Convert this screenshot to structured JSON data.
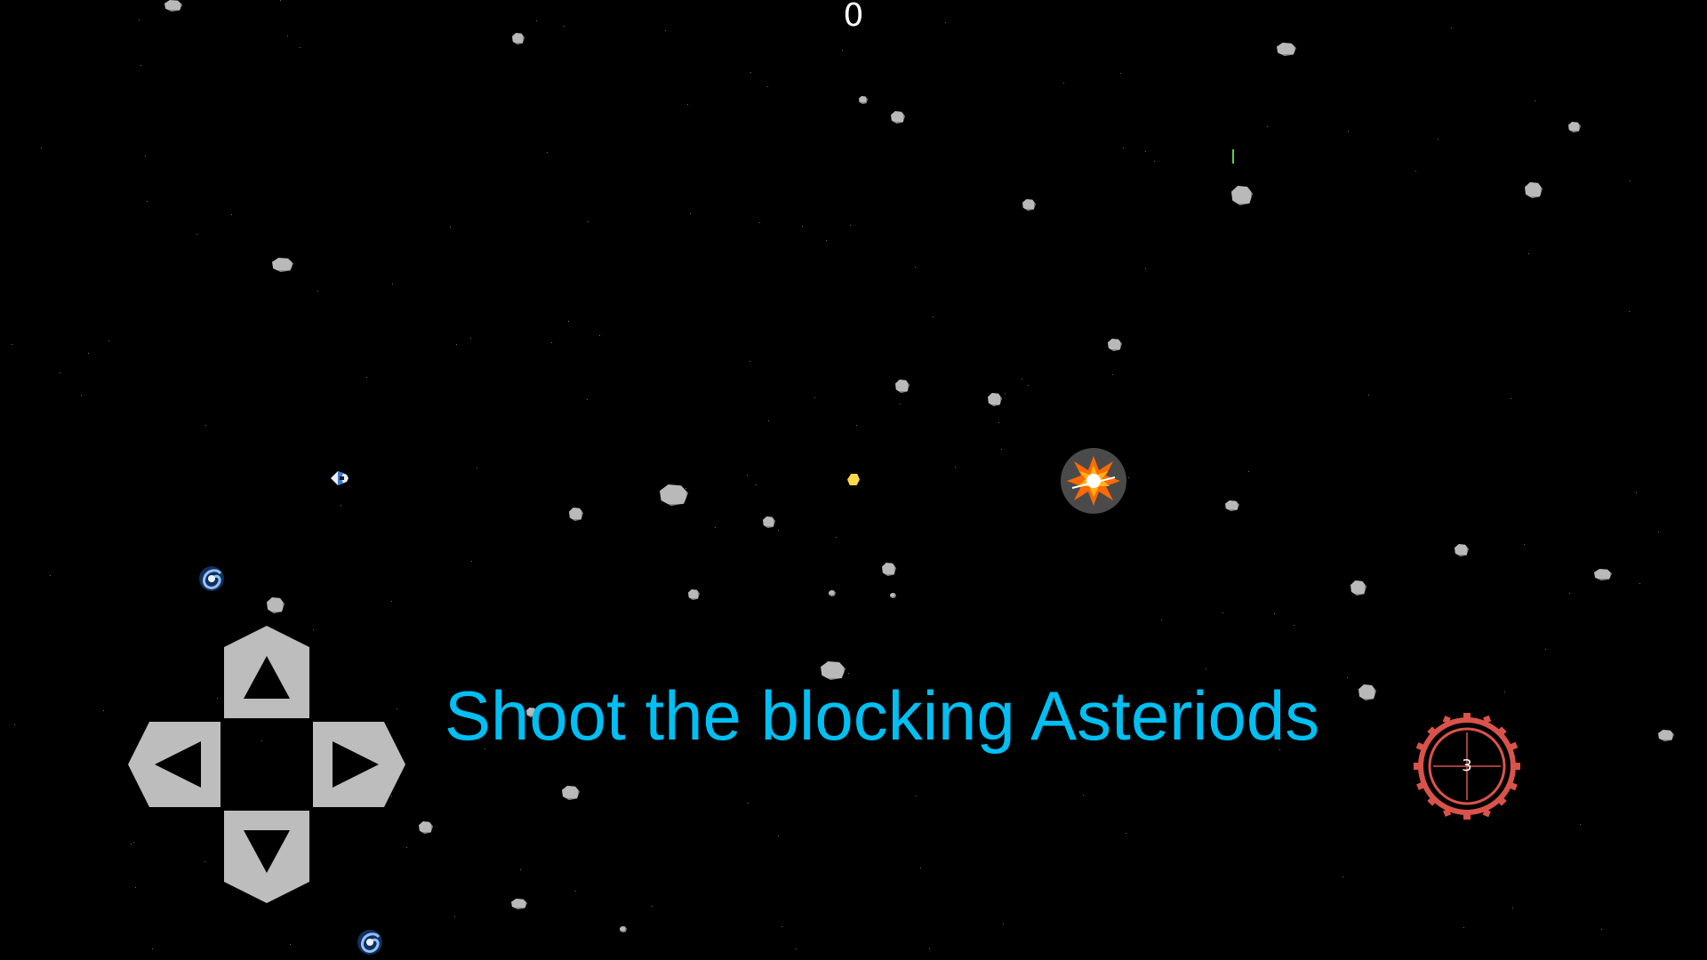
{
  "hud": {
    "score": "0"
  },
  "tutorial": {
    "hint_text": "Shoot the blocking Asteriods"
  },
  "controls": {
    "dpad": [
      "up",
      "left",
      "right",
      "down"
    ],
    "fire_button": {
      "count": "3",
      "icon": "crosshair-icon"
    }
  },
  "icons": {
    "player": "spaceship-icon",
    "asteroid": "asteroid-icon",
    "galaxy": "galaxy-icon",
    "explosion": "explosion-icon",
    "bullet": "bullet-icon"
  },
  "colors": {
    "background": "#000000",
    "hint_text": "#00bff3",
    "score_text": "#ffffff",
    "dpad": "#bdbdbd",
    "fire_ring": "#d9534a",
    "asteroid": "#b9b9b9",
    "bullet": "#ffd84a",
    "laser": "#5bd33a"
  }
}
